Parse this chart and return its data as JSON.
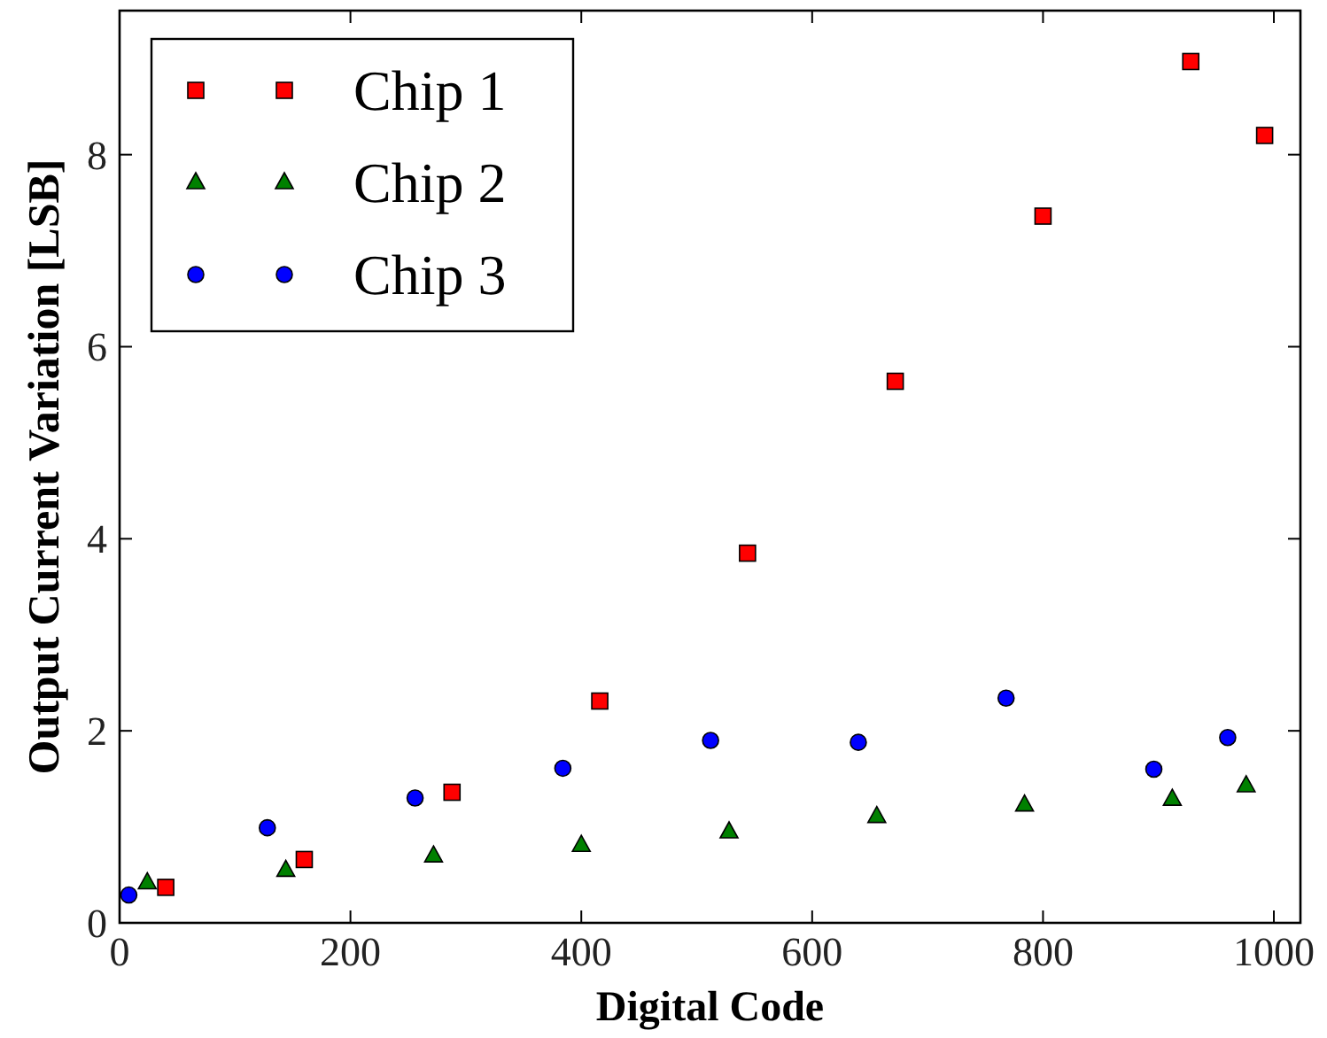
{
  "chart_data": {
    "type": "scatter",
    "xlabel": "Digital Code",
    "ylabel": "Output Current Variation [LSB]",
    "xlim": [
      0,
      1023
    ],
    "ylim": [
      0,
      9.5
    ],
    "xticks": [
      0,
      200,
      400,
      600,
      800,
      1000
    ],
    "yticks": [
      0,
      2,
      4,
      6,
      8
    ],
    "grid": false,
    "legend": "top left",
    "series": [
      {
        "name": "Chip 1",
        "color": "#ff0000",
        "marker": "square",
        "x": [
          40,
          160,
          288,
          416,
          544,
          672,
          800,
          928,
          992
        ],
        "values": [
          0.37,
          0.66,
          1.36,
          2.31,
          3.85,
          5.64,
          7.36,
          8.97,
          8.2
        ]
      },
      {
        "name": "Chip 2",
        "color": "#008000",
        "marker": "triangle",
        "x": [
          24,
          144,
          272,
          400,
          528,
          656,
          784,
          912,
          976
        ],
        "values": [
          0.42,
          0.55,
          0.7,
          0.81,
          0.95,
          1.11,
          1.23,
          1.29,
          1.43
        ]
      },
      {
        "name": "Chip 3",
        "color": "#0000ff",
        "marker": "circle",
        "x": [
          8,
          128,
          256,
          384,
          512,
          640,
          768,
          896,
          960
        ],
        "values": [
          0.29,
          0.99,
          1.3,
          1.61,
          1.9,
          1.88,
          2.34,
          1.6,
          1.93
        ]
      }
    ]
  }
}
